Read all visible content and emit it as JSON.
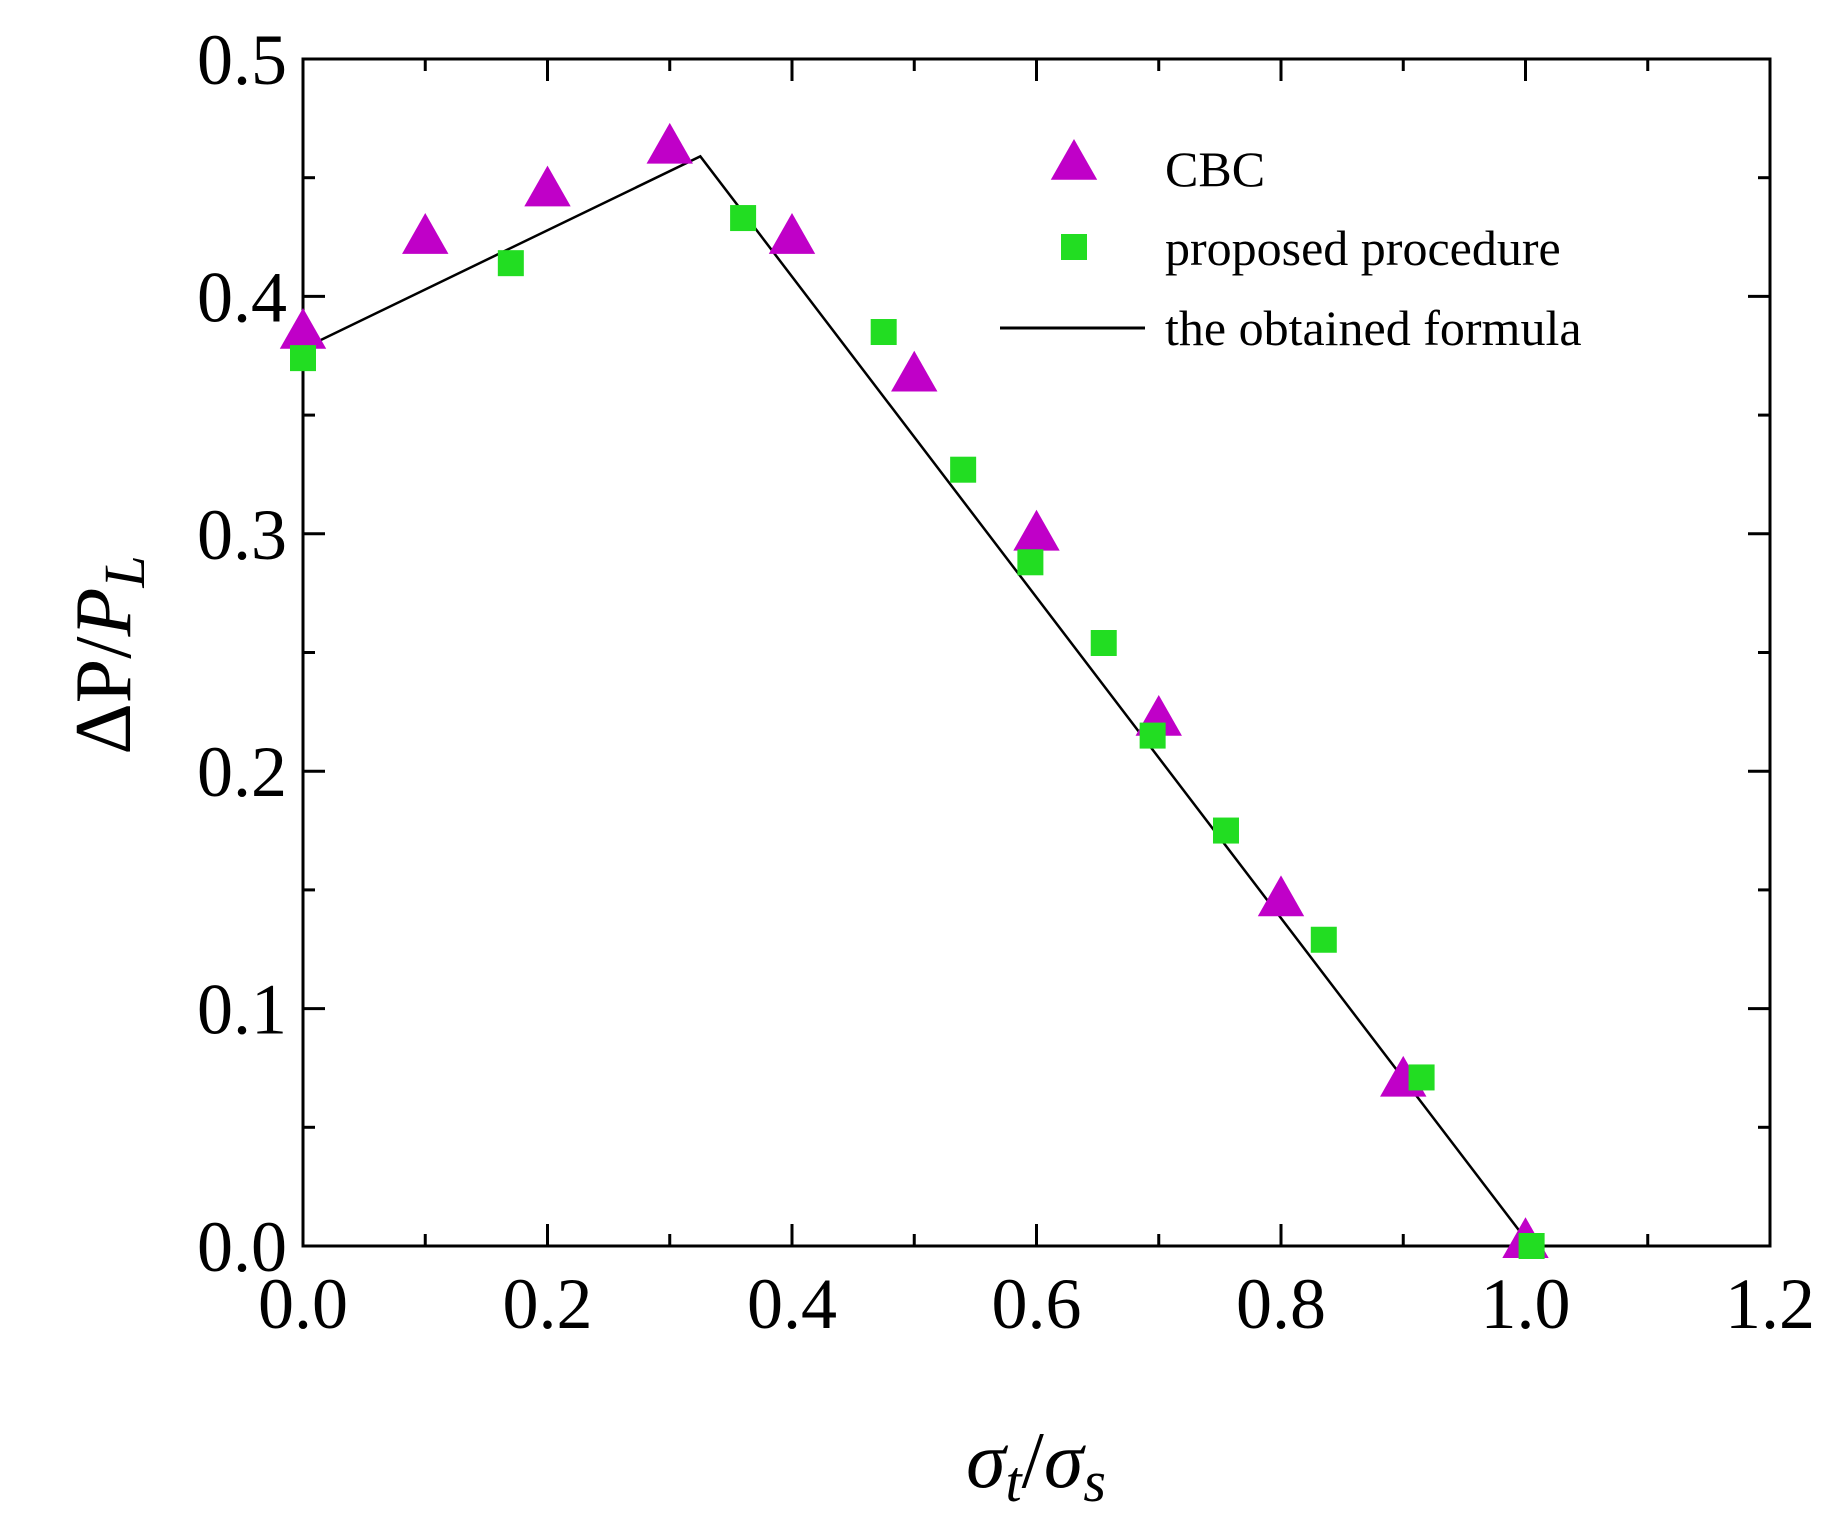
{
  "chart_data": {
    "type": "scatter",
    "title": "",
    "xlabel": {
      "main": "σ",
      "sub1": "t",
      "sep": "/",
      "main2": "σ",
      "sub2": "s"
    },
    "ylabel": {
      "main": "ΔP",
      "sep": "/",
      "main2": "P",
      "sub2": "L"
    },
    "xlim": [
      0.0,
      1.2
    ],
    "ylim": [
      0.0,
      0.5
    ],
    "x_ticks": [
      {
        "value": 0.0,
        "label": "0.0"
      },
      {
        "value": 0.2,
        "label": "0.2"
      },
      {
        "value": 0.4,
        "label": "0.4"
      },
      {
        "value": 0.6,
        "label": "0.6"
      },
      {
        "value": 0.8,
        "label": "0.8"
      },
      {
        "value": 1.0,
        "label": "1.0"
      },
      {
        "value": 1.2,
        "label": "1.2"
      }
    ],
    "x_minor_ticks": [
      0.1,
      0.3,
      0.5,
      0.7,
      0.9,
      1.1
    ],
    "y_ticks": [
      {
        "value": 0.0,
        "label": "0.0"
      },
      {
        "value": 0.1,
        "label": "0.1"
      },
      {
        "value": 0.2,
        "label": "0.2"
      },
      {
        "value": 0.3,
        "label": "0.3"
      },
      {
        "value": 0.4,
        "label": "0.4"
      },
      {
        "value": 0.5,
        "label": "0.5"
      }
    ],
    "y_minor_ticks": [
      0.05,
      0.15,
      0.25,
      0.35,
      0.45
    ],
    "grid": false,
    "legend_position": "top-right",
    "series": [
      {
        "name": "CBC",
        "marker": "triangle",
        "color": "#C000C8",
        "points": [
          [
            0.0,
            0.385
          ],
          [
            0.1,
            0.425
          ],
          [
            0.2,
            0.445
          ],
          [
            0.3,
            0.463
          ],
          [
            0.4,
            0.425
          ],
          [
            0.5,
            0.367
          ],
          [
            0.6,
            0.3
          ],
          [
            0.7,
            0.222
          ],
          [
            0.8,
            0.146
          ],
          [
            0.9,
            0.07
          ],
          [
            1.0,
            0.002
          ]
        ]
      },
      {
        "name": "proposed procedure",
        "marker": "square",
        "color": "#22DD22",
        "points": [
          [
            0.0,
            0.374
          ],
          [
            0.17,
            0.414
          ],
          [
            0.36,
            0.433
          ],
          [
            0.475,
            0.385
          ],
          [
            0.54,
            0.327
          ],
          [
            0.595,
            0.288
          ],
          [
            0.655,
            0.254
          ],
          [
            0.695,
            0.215
          ],
          [
            0.755,
            0.175
          ],
          [
            0.835,
            0.129
          ],
          [
            0.915,
            0.071
          ],
          [
            1.005,
            0.0
          ]
        ]
      },
      {
        "name": "the obtained formula",
        "marker": "line",
        "color": "#000000",
        "points": [
          [
            0.0,
            0.378
          ],
          [
            0.325,
            0.459
          ],
          [
            1.0,
            0.003
          ]
        ]
      }
    ]
  }
}
